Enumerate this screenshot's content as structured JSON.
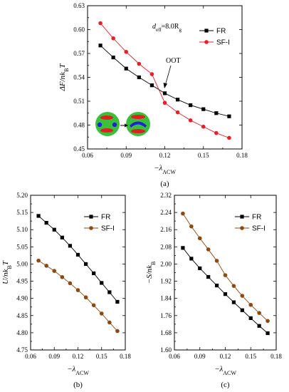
{
  "chart_data": [
    {
      "id": "a",
      "type": "line",
      "panel_label": "(a)",
      "xlabel": "−λ",
      "xlabel_sub": "ACW",
      "ylabel": "ΔF/nk",
      "ylabel_sub": "B",
      "ylabel_tail": "T",
      "xlim": [
        0.06,
        0.18
      ],
      "ylim": [
        0.45,
        0.63
      ],
      "xticks": [
        "0.06",
        "0.09",
        "0.12",
        "0.15",
        "0.18"
      ],
      "yticks": [
        "0.45",
        "0.48",
        "0.51",
        "0.54",
        "0.57",
        "0.60",
        "0.63"
      ],
      "legend_position": "top-right",
      "annotation_text": "d",
      "annotation_sub": "eff",
      "annotation_rest": "=8.0R",
      "annotation_sub2": "g",
      "oot_label": "OOT",
      "x": [
        0.07,
        0.08,
        0.09,
        0.1,
        0.11,
        0.12,
        0.13,
        0.14,
        0.15,
        0.16,
        0.17
      ],
      "series": [
        {
          "name": "FR",
          "color": "#000000",
          "marker": "square",
          "values": [
            0.58,
            0.565,
            0.551,
            0.54,
            0.53,
            0.52,
            0.512,
            0.505,
            0.5,
            0.495,
            0.491
          ]
        },
        {
          "name": "SF-I",
          "color": "#e8202a",
          "marker": "circle",
          "values": [
            0.608,
            0.589,
            0.572,
            0.557,
            0.544,
            0.508,
            0.496,
            0.486,
            0.478,
            0.47,
            0.464
          ]
        }
      ]
    },
    {
      "id": "b",
      "type": "line",
      "panel_label": "(b)",
      "xlabel": "−λ",
      "xlabel_sub": "ACW",
      "ylabel": "U/nk",
      "ylabel_sub": "B",
      "ylabel_tail": "T",
      "xlim": [
        0.06,
        0.18
      ],
      "ylim": [
        4.75,
        5.2
      ],
      "xticks": [
        "0.06",
        "0.09",
        "0.12",
        "0.15",
        "0.18"
      ],
      "yticks": [
        "4.75",
        "4.80",
        "4.85",
        "4.90",
        "4.95",
        "5.00",
        "5.05",
        "5.10",
        "5.15",
        "5.20"
      ],
      "legend_position": "top-right",
      "x": [
        0.07,
        0.08,
        0.09,
        0.1,
        0.11,
        0.12,
        0.13,
        0.14,
        0.15,
        0.16,
        0.17
      ],
      "series": [
        {
          "name": "FR",
          "color": "#000000",
          "marker": "square",
          "values": [
            5.14,
            5.12,
            5.1,
            5.077,
            5.053,
            5.027,
            5.0,
            4.973,
            4.945,
            4.918,
            4.89
          ]
        },
        {
          "name": "SF-I",
          "color": "#8b4a10",
          "marker": "circle",
          "values": [
            5.01,
            4.995,
            4.98,
            4.962,
            4.944,
            4.924,
            4.903,
            4.88,
            4.856,
            4.83,
            4.805
          ]
        }
      ]
    },
    {
      "id": "c",
      "type": "line",
      "panel_label": "(c)",
      "xlabel": "−λ",
      "xlabel_sub": "ACW",
      "ylabel": "−S/nk",
      "ylabel_sub": "B",
      "ylabel_tail": "",
      "xlim": [
        0.06,
        0.18
      ],
      "ylim": [
        1.6,
        2.32
      ],
      "xticks": [
        "0.06",
        "0.09",
        "0.12",
        "0.15",
        "0.18"
      ],
      "yticks": [
        "1.60",
        "1.68",
        "1.76",
        "1.84",
        "1.92",
        "2.00",
        "2.08",
        "2.16",
        "2.24",
        "2.32"
      ],
      "legend_position": "top-right",
      "x": [
        0.07,
        0.08,
        0.09,
        0.1,
        0.11,
        0.12,
        0.13,
        0.14,
        0.15,
        0.16,
        0.17
      ],
      "series": [
        {
          "name": "FR",
          "color": "#000000",
          "marker": "square",
          "values": [
            2.075,
            2.025,
            1.98,
            1.94,
            1.9,
            1.86,
            1.822,
            1.785,
            1.748,
            1.712,
            1.678
          ]
        },
        {
          "name": "SF-I",
          "color": "#8b4a10",
          "marker": "circle",
          "values": [
            2.235,
            2.175,
            2.12,
            2.068,
            2.015,
            1.948,
            1.898,
            1.852,
            1.81,
            1.772,
            1.735
          ]
        }
      ]
    }
  ]
}
